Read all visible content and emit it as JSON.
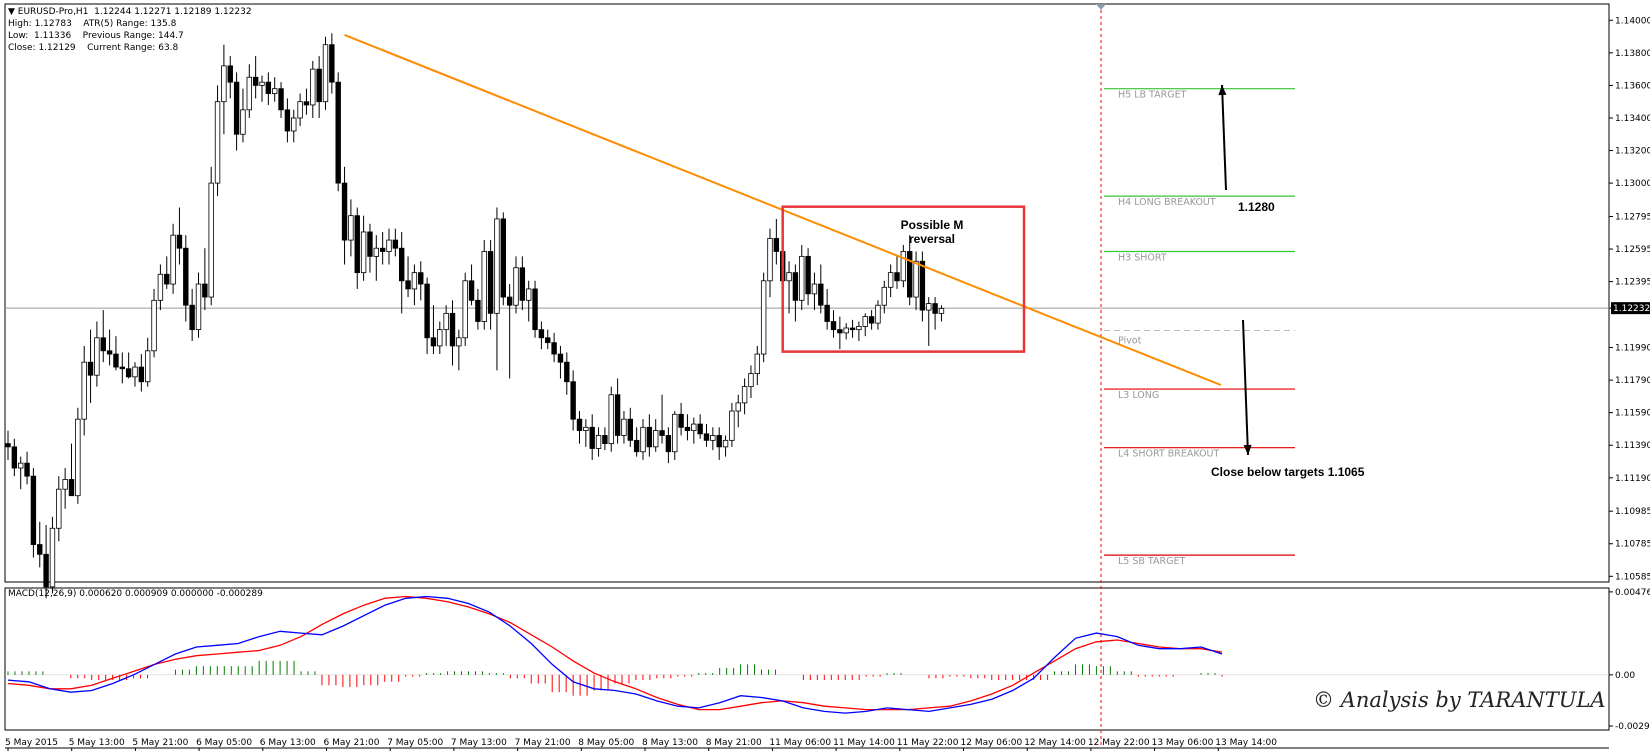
{
  "header": {
    "symbol_line": "▼ EURUSD-Pro,H1  1.12244 1.12271 1.12189 1.12232",
    "lines": [
      {
        "label": "High:",
        "value": "1.12783",
        "label2": "ATR(5) Range:",
        "value2": "135.8"
      },
      {
        "label": "Low:",
        "value": "1.11336",
        "label2": "Previous Range:",
        "value2": "144.7"
      },
      {
        "label": "Close:",
        "value": "1.12129",
        "label2": "Current Range:",
        "value2": "63.8"
      }
    ]
  },
  "macd_label": "MACD(12,26,9) 0.000620 0.000909 0.000000 -0.000289",
  "annotations": {
    "possible_m": "Possible M",
    "reversal": "reversal",
    "target_up": "1.1280",
    "close_below": "Close below targets 1.1065",
    "watermark": "© Analysis by TARANTULA"
  },
  "colors": {
    "bull": "#ffffff",
    "bear": "#000000",
    "trendline": "#ff8c00",
    "box": "#e8363a",
    "green_level": "#34c534",
    "red_level": "#e00000",
    "macd_main": "#0000ff",
    "macd_signal": "#ff0000",
    "hist_pos": "#008000",
    "hist_neg": "#ff0000",
    "current_price_line": "#999999",
    "vline": "#ff0000"
  },
  "chart_data": [
    {
      "type": "candlestick",
      "title": "EURUSD-Pro,H1",
      "ylim": [
        1.1055,
        1.141
      ],
      "y_ticks": [
        "1.14000",
        "1.13800",
        "1.13600",
        "1.13400",
        "1.13200",
        "1.13000",
        "1.12795",
        "1.12595",
        "1.12395",
        "1.12232",
        "1.11990",
        "1.11790",
        "1.11590",
        "1.11390",
        "1.11190",
        "1.10985",
        "1.10785",
        "1.10585"
      ],
      "x_tick_labels": [
        "5 May 2015",
        "5 May 13:00",
        "5 May 21:00",
        "6 May 05:00",
        "6 May 13:00",
        "6 May 21:00",
        "7 May 05:00",
        "7 May 13:00",
        "7 May 21:00",
        "8 May 05:00",
        "8 May 13:00",
        "8 May 21:00",
        "11 May 06:00",
        "11 May 14:00",
        "11 May 22:00",
        "12 May 06:00",
        "12 May 14:00",
        "12 May 22:00",
        "13 May 06:00",
        "13 May 14:00"
      ],
      "current_price": 1.12232,
      "candles": [
        [
          1.114,
          1.1148,
          1.113,
          1.1138
        ],
        [
          1.1138,
          1.1143,
          1.112,
          1.1125
        ],
        [
          1.1125,
          1.1132,
          1.1112,
          1.1128
        ],
        [
          1.1128,
          1.1135,
          1.1115,
          1.112
        ],
        [
          1.112,
          1.1125,
          1.107,
          1.1078
        ],
        [
          1.1078,
          1.1092,
          1.1064,
          1.1072
        ],
        [
          1.1072,
          1.109,
          1.1045,
          1.1052
        ],
        [
          1.1052,
          1.1095,
          1.1048,
          1.1088
        ],
        [
          1.1088,
          1.112,
          1.108,
          1.1112
        ],
        [
          1.1112,
          1.1125,
          1.11,
          1.1118
        ],
        [
          1.1118,
          1.114,
          1.111,
          1.1108
        ],
        [
          1.1108,
          1.1162,
          1.1103,
          1.1155
        ],
        [
          1.1155,
          1.12,
          1.1145,
          1.119
        ],
        [
          1.119,
          1.121,
          1.1165,
          1.1182
        ],
        [
          1.1182,
          1.1215,
          1.1175,
          1.1205
        ],
        [
          1.1205,
          1.1222,
          1.119,
          1.1197
        ],
        [
          1.1197,
          1.121,
          1.1188,
          1.1195
        ],
        [
          1.1195,
          1.1206,
          1.1185,
          1.1187
        ],
        [
          1.1187,
          1.1196,
          1.1177,
          1.1186
        ],
        [
          1.1186,
          1.1196,
          1.118,
          1.1181
        ],
        [
          1.1181,
          1.119,
          1.1175,
          1.1187
        ],
        [
          1.1187,
          1.1195,
          1.1172,
          1.1178
        ],
        [
          1.1178,
          1.1205,
          1.1175,
          1.1197
        ],
        [
          1.1197,
          1.1235,
          1.1193,
          1.1228
        ],
        [
          1.1228,
          1.125,
          1.1222,
          1.1244
        ],
        [
          1.1244,
          1.1255,
          1.1235,
          1.1238
        ],
        [
          1.1238,
          1.1275,
          1.1232,
          1.1268
        ],
        [
          1.1268,
          1.1285,
          1.125,
          1.126
        ],
        [
          1.126,
          1.1268,
          1.1215,
          1.1225
        ],
        [
          1.1225,
          1.1235,
          1.1203,
          1.121
        ],
        [
          1.121,
          1.1245,
          1.1205,
          1.1238
        ],
        [
          1.1238,
          1.126,
          1.1222,
          1.123
        ],
        [
          1.123,
          1.131,
          1.1225,
          1.13
        ],
        [
          1.13,
          1.136,
          1.1292,
          1.135
        ],
        [
          1.135,
          1.1385,
          1.133,
          1.1372
        ],
        [
          1.1372,
          1.1378,
          1.1352,
          1.1362
        ],
        [
          1.1362,
          1.1368,
          1.132,
          1.133
        ],
        [
          1.133,
          1.1358,
          1.1325,
          1.1345
        ],
        [
          1.1345,
          1.1373,
          1.134,
          1.1365
        ],
        [
          1.1365,
          1.1378,
          1.1352,
          1.136
        ],
        [
          1.136,
          1.1366,
          1.135,
          1.1362
        ],
        [
          1.1362,
          1.1368,
          1.1348,
          1.1355
        ],
        [
          1.1355,
          1.1365,
          1.135,
          1.1358
        ],
        [
          1.1358,
          1.1362,
          1.134,
          1.1345
        ],
        [
          1.1345,
          1.1352,
          1.1325,
          1.1332
        ],
        [
          1.1332,
          1.1345,
          1.1325,
          1.134
        ],
        [
          1.134,
          1.1355,
          1.1335,
          1.135
        ],
        [
          1.135,
          1.1358,
          1.1342,
          1.1348
        ],
        [
          1.1348,
          1.1375,
          1.134,
          1.137
        ],
        [
          1.137,
          1.1378,
          1.134,
          1.135
        ],
        [
          1.135,
          1.139,
          1.1345,
          1.1385
        ],
        [
          1.1385,
          1.1392,
          1.1355,
          1.1362
        ],
        [
          1.1362,
          1.1368,
          1.1295,
          1.13
        ],
        [
          1.13,
          1.131,
          1.125,
          1.1265
        ],
        [
          1.1265,
          1.129,
          1.1255,
          1.128
        ],
        [
          1.128,
          1.1285,
          1.1235,
          1.1245
        ],
        [
          1.1245,
          1.128,
          1.124,
          1.127
        ],
        [
          1.127,
          1.1275,
          1.1245,
          1.1255
        ],
        [
          1.1255,
          1.1268,
          1.124,
          1.126
        ],
        [
          1.126,
          1.127,
          1.125,
          1.1258
        ],
        [
          1.1258,
          1.1272,
          1.125,
          1.1265
        ],
        [
          1.1265,
          1.1272,
          1.1255,
          1.126
        ],
        [
          1.126,
          1.127,
          1.122,
          1.124
        ],
        [
          1.124,
          1.1255,
          1.123,
          1.1235
        ],
        [
          1.1235,
          1.125,
          1.1225,
          1.1245
        ],
        [
          1.1245,
          1.1252,
          1.1228,
          1.1238
        ],
        [
          1.1238,
          1.1242,
          1.1195,
          1.1205
        ],
        [
          1.1205,
          1.1225,
          1.1195,
          1.12
        ],
        [
          1.12,
          1.1215,
          1.1195,
          1.121
        ],
        [
          1.121,
          1.1225,
          1.12,
          1.122
        ],
        [
          1.122,
          1.1228,
          1.1188,
          1.12
        ],
        [
          1.12,
          1.121,
          1.1185,
          1.1205
        ],
        [
          1.1205,
          1.1245,
          1.12,
          1.124
        ],
        [
          1.124,
          1.125,
          1.1225,
          1.1228
        ],
        [
          1.1228,
          1.1235,
          1.121,
          1.1215
        ],
        [
          1.1215,
          1.1265,
          1.121,
          1.1258
        ],
        [
          1.1258,
          1.1265,
          1.121,
          1.122
        ],
        [
          1.122,
          1.1285,
          1.1185,
          1.1278
        ],
        [
          1.1278,
          1.1282,
          1.1225,
          1.123
        ],
        [
          1.123,
          1.1238,
          1.118,
          1.1225
        ],
        [
          1.1225,
          1.1255,
          1.122,
          1.1248
        ],
        [
          1.1248,
          1.1255,
          1.1222,
          1.1228
        ],
        [
          1.1228,
          1.124,
          1.1215,
          1.1235
        ],
        [
          1.1235,
          1.124,
          1.1205,
          1.121
        ],
        [
          1.121,
          1.1215,
          1.1198,
          1.1205
        ],
        [
          1.1205,
          1.121,
          1.1198,
          1.1202
        ],
        [
          1.1202,
          1.1208,
          1.119,
          1.1195
        ],
        [
          1.1195,
          1.12,
          1.118,
          1.119
        ],
        [
          1.119,
          1.1196,
          1.117,
          1.1178
        ],
        [
          1.1178,
          1.1185,
          1.1148,
          1.1155
        ],
        [
          1.1155,
          1.116,
          1.114,
          1.1148
        ],
        [
          1.1148,
          1.1155,
          1.1138,
          1.115
        ],
        [
          1.115,
          1.1158,
          1.113,
          1.1137
        ],
        [
          1.1137,
          1.115,
          1.1132,
          1.1145
        ],
        [
          1.1145,
          1.115,
          1.1136,
          1.114
        ],
        [
          1.114,
          1.1175,
          1.1135,
          1.117
        ],
        [
          1.117,
          1.118,
          1.114,
          1.1145
        ],
        [
          1.1145,
          1.116,
          1.114,
          1.1155
        ],
        [
          1.1155,
          1.1162,
          1.1138,
          1.1142
        ],
        [
          1.1142,
          1.115,
          1.1132,
          1.1135
        ],
        [
          1.1135,
          1.1155,
          1.113,
          1.115
        ],
        [
          1.115,
          1.1158,
          1.1132,
          1.1138
        ],
        [
          1.1138,
          1.1155,
          1.1135,
          1.1148
        ],
        [
          1.1148,
          1.117,
          1.114,
          1.1145
        ],
        [
          1.1145,
          1.115,
          1.1128,
          1.1135
        ],
        [
          1.1135,
          1.116,
          1.113,
          1.1158
        ],
        [
          1.1158,
          1.1165,
          1.1145,
          1.115
        ],
        [
          1.115,
          1.1158,
          1.1142,
          1.1148
        ],
        [
          1.1148,
          1.1156,
          1.114,
          1.1152
        ],
        [
          1.1152,
          1.1158,
          1.1143,
          1.1146
        ],
        [
          1.1146,
          1.1152,
          1.1138,
          1.1142
        ],
        [
          1.1142,
          1.115,
          1.1136,
          1.1145
        ],
        [
          1.1145,
          1.115,
          1.113,
          1.1138
        ],
        [
          1.1138,
          1.1145,
          1.1132,
          1.1142
        ],
        [
          1.1142,
          1.1165,
          1.1138,
          1.116
        ],
        [
          1.116,
          1.117,
          1.115,
          1.1165
        ],
        [
          1.1165,
          1.118,
          1.1158,
          1.1175
        ],
        [
          1.1175,
          1.1188,
          1.1168,
          1.1183
        ],
        [
          1.1183,
          1.12,
          1.1176,
          1.1195
        ],
        [
          1.1195,
          1.1245,
          1.119,
          1.124
        ],
        [
          1.124,
          1.1272,
          1.123,
          1.1266
        ],
        [
          1.1266,
          1.1278,
          1.125,
          1.1258
        ],
        [
          1.1258,
          1.1265,
          1.1228,
          1.124
        ],
        [
          1.124,
          1.1252,
          1.122,
          1.1245
        ],
        [
          1.1245,
          1.125,
          1.1215,
          1.1228
        ],
        [
          1.1228,
          1.1262,
          1.1222,
          1.1255
        ],
        [
          1.1255,
          1.126,
          1.1225,
          1.1232
        ],
        [
          1.1232,
          1.1245,
          1.1222,
          1.1238
        ],
        [
          1.1238,
          1.125,
          1.122,
          1.1225
        ],
        [
          1.1225,
          1.1235,
          1.121,
          1.1215
        ],
        [
          1.1215,
          1.1222,
          1.1205,
          1.121
        ],
        [
          1.121,
          1.1218,
          1.1198,
          1.1208
        ],
        [
          1.1208,
          1.1214,
          1.1204,
          1.1211
        ],
        [
          1.1211,
          1.1216,
          1.1205,
          1.121
        ],
        [
          1.121,
          1.1215,
          1.1203,
          1.1212
        ],
        [
          1.1212,
          1.122,
          1.1206,
          1.1218
        ],
        [
          1.1218,
          1.1222,
          1.121,
          1.1214
        ],
        [
          1.1214,
          1.1228,
          1.121,
          1.1225
        ],
        [
          1.1225,
          1.124,
          1.122,
          1.1236
        ],
        [
          1.1236,
          1.125,
          1.123,
          1.1245
        ],
        [
          1.1245,
          1.1255,
          1.1235,
          1.124
        ],
        [
          1.124,
          1.1262,
          1.1236,
          1.1258
        ],
        [
          1.1258,
          1.1268,
          1.1225,
          1.123
        ],
        [
          1.123,
          1.1258,
          1.1222,
          1.1252
        ],
        [
          1.1252,
          1.1258,
          1.1215,
          1.1222
        ],
        [
          1.1222,
          1.123,
          1.12,
          1.1226
        ],
        [
          1.1226,
          1.123,
          1.121,
          1.122
        ],
        [
          1.122,
          1.1225,
          1.1215,
          1.1223
        ]
      ],
      "levels": [
        {
          "label": "H5 LB TARGET",
          "price": 1.1358,
          "color": "green"
        },
        {
          "label": "H4 LONG BREAKOUT",
          "price": 1.1292,
          "color": "green"
        },
        {
          "label": "H3 SHORT",
          "price": 1.1258,
          "color": "green"
        },
        {
          "label": "Pivot",
          "price": 1.12095,
          "color": "pivot"
        },
        {
          "label": "L3 LONG",
          "price": 1.11735,
          "color": "red"
        },
        {
          "label": "L4 SHORT BREAKOUT",
          "price": 1.11375,
          "color": "red"
        },
        {
          "label": "L5 SB TARGET",
          "price": 1.10715,
          "color": "red"
        }
      ],
      "trendline": {
        "from_index": 53,
        "from_price": 1.1391,
        "to_index": 191,
        "to_price": 1.1176
      },
      "box": {
        "from_index": 122,
        "to_index": 160,
        "high": 1.12855,
        "low": 1.11965
      }
    },
    {
      "type": "line",
      "title": "MACD(12,26,9)",
      "ylim": [
        -0.00294,
        0.00476
      ],
      "y_ticks": [
        "0.004767",
        "0.00",
        "-0.00294"
      ],
      "macd_main": [
        -0.0003,
        -0.0004,
        -0.0008,
        -0.001,
        -0.0009,
        -0.0005,
        0.0,
        0.0006,
        0.0012,
        0.0016,
        0.0017,
        0.0018,
        0.0022,
        0.0025,
        0.0024,
        0.0023,
        0.0028,
        0.0034,
        0.004,
        0.0044,
        0.0045,
        0.0044,
        0.0041,
        0.0036,
        0.0028,
        0.0018,
        0.0006,
        -0.0004,
        -0.0008,
        -0.0009,
        -0.0011,
        -0.0015,
        -0.0018,
        -0.0019,
        -0.0016,
        -0.0012,
        -0.0013,
        -0.0015,
        -0.0019,
        -0.0021,
        -0.0022,
        -0.0021,
        -0.0019,
        -0.002,
        -0.0021,
        -0.0019,
        -0.0017,
        -0.0014,
        -0.0009,
        -0.0002,
        0.001,
        0.0021,
        0.0024,
        0.0022,
        0.0017,
        0.0015,
        0.0015,
        0.0016,
        0.0012
      ],
      "macd_signal": [
        -0.0005,
        -0.0006,
        -0.0008,
        -0.0008,
        -0.0006,
        -0.0002,
        0.0002,
        0.0006,
        0.0009,
        0.0011,
        0.0012,
        0.0013,
        0.0014,
        0.0017,
        0.0022,
        0.0029,
        0.0035,
        0.004,
        0.0044,
        0.0045,
        0.0044,
        0.0042,
        0.0039,
        0.0035,
        0.003,
        0.0023,
        0.0016,
        0.0008,
        0.0001,
        -0.0004,
        -0.0008,
        -0.0013,
        -0.0017,
        -0.002,
        -0.002,
        -0.0018,
        -0.0016,
        -0.0015,
        -0.0016,
        -0.0018,
        -0.0019,
        -0.002,
        -0.002,
        -0.002,
        -0.0019,
        -0.0018,
        -0.0015,
        -0.0011,
        -0.0006,
        0.0001,
        0.0008,
        0.0015,
        0.0019,
        0.002,
        0.0018,
        0.0016,
        0.0015,
        0.0015,
        0.0013
      ],
      "histogram": [
        0.0002,
        0.0002,
        0.0,
        -0.0002,
        -0.0003,
        -0.0003,
        -0.0002,
        0.0,
        0.0003,
        0.0005,
        0.0005,
        0.0005,
        0.0008,
        0.0008,
        0.0002,
        -0.0006,
        -0.0007,
        -0.0006,
        -0.0004,
        -0.0001,
        0.0001,
        0.0002,
        0.0002,
        0.0001,
        -0.0002,
        -0.0005,
        -0.001,
        -0.0012,
        -0.0009,
        -0.0005,
        -0.0003,
        -0.0002,
        -0.0001,
        0.0001,
        0.0004,
        0.0006,
        0.0003,
        0.0,
        -0.0003,
        -0.0003,
        -0.0003,
        -0.0001,
        0.0001,
        0.0,
        -0.0002,
        -0.0001,
        -0.0002,
        -0.0003,
        -0.0003,
        -0.0003,
        0.0002,
        0.0006,
        0.0005,
        0.0002,
        -0.0001,
        -0.0001,
        0.0,
        0.0001,
        -0.0001
      ]
    }
  ]
}
